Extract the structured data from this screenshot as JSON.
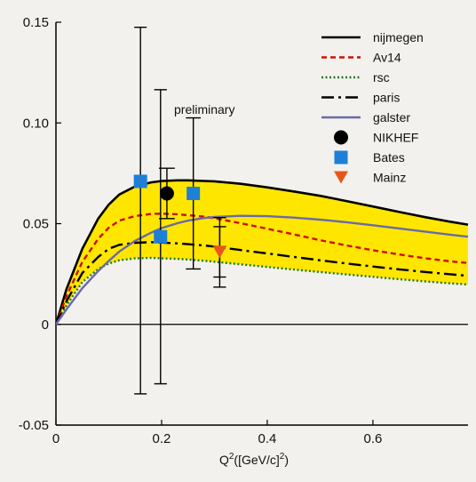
{
  "chart_data": {
    "type": "line",
    "xlabel_base": "Q",
    "xlabel_sup1": "2",
    "xlabel_mid": "([GeV/c]",
    "xlabel_sup2": "2",
    "xlabel_end": ")",
    "ylabel": "",
    "xlim": [
      0,
      0.78
    ],
    "ylim": [
      -0.05,
      0.15
    ],
    "x_ticks": [
      0,
      0.2,
      0.4,
      0.6
    ],
    "x_tick_labels": [
      "0",
      "0.2",
      "0.4",
      "0.6"
    ],
    "y_ticks": [
      -0.05,
      0,
      0.05,
      0.1,
      0.15
    ],
    "y_tick_labels": [
      "-0.05",
      "0",
      "0.05",
      "0.10",
      "0.15"
    ],
    "annotation": "preliminary",
    "band": {
      "color": "#ffe600",
      "upper": "nijmegen",
      "lower": "rsc"
    },
    "curves": [
      {
        "name": "nijmegen",
        "color": "#000000",
        "style": "solid",
        "x": [
          0,
          0.02,
          0.05,
          0.08,
          0.1,
          0.12,
          0.15,
          0.18,
          0.2,
          0.23,
          0.25,
          0.28,
          0.3,
          0.35,
          0.4,
          0.45,
          0.5,
          0.55,
          0.6,
          0.65,
          0.7,
          0.75,
          0.78
        ],
        "y": [
          0,
          0.0175,
          0.0375,
          0.0525,
          0.0595,
          0.0645,
          0.0685,
          0.0705,
          0.0712,
          0.0715,
          0.0715,
          0.0712,
          0.071,
          0.0698,
          0.068,
          0.066,
          0.0638,
          0.0612,
          0.0585,
          0.0558,
          0.0532,
          0.0508,
          0.0495
        ]
      },
      {
        "name": "Av14",
        "color": "#cc1100",
        "style": "dashed",
        "x": [
          0,
          0.02,
          0.05,
          0.08,
          0.1,
          0.12,
          0.15,
          0.18,
          0.2,
          0.23,
          0.25,
          0.28,
          0.3,
          0.35,
          0.4,
          0.45,
          0.5,
          0.55,
          0.6,
          0.65,
          0.7,
          0.75,
          0.78
        ],
        "y": [
          0,
          0.014,
          0.031,
          0.0425,
          0.048,
          0.0515,
          0.0538,
          0.0548,
          0.055,
          0.0547,
          0.0542,
          0.0535,
          0.0527,
          0.0502,
          0.0475,
          0.0447,
          0.0418,
          0.0392,
          0.0368,
          0.0347,
          0.0328,
          0.0312,
          0.0305
        ]
      },
      {
        "name": "rsc",
        "color": "#1f7a1f",
        "style": "dotted",
        "x": [
          0,
          0.02,
          0.05,
          0.08,
          0.1,
          0.12,
          0.15,
          0.18,
          0.2,
          0.23,
          0.25,
          0.28,
          0.3,
          0.35,
          0.4,
          0.45,
          0.5,
          0.55,
          0.6,
          0.65,
          0.7,
          0.75,
          0.78
        ],
        "y": [
          0,
          0.0095,
          0.021,
          0.0275,
          0.0302,
          0.0318,
          0.0328,
          0.033,
          0.0328,
          0.0325,
          0.0322,
          0.0316,
          0.0311,
          0.0298,
          0.0285,
          0.0272,
          0.026,
          0.0248,
          0.0236,
          0.0224,
          0.0213,
          0.0203,
          0.0198
        ]
      },
      {
        "name": "paris",
        "color": "#000000",
        "style": "dashdot",
        "x": [
          0,
          0.02,
          0.05,
          0.08,
          0.1,
          0.12,
          0.15,
          0.18,
          0.2,
          0.23,
          0.25,
          0.28,
          0.3,
          0.35,
          0.4,
          0.45,
          0.5,
          0.55,
          0.6,
          0.65,
          0.7,
          0.75,
          0.78
        ],
        "y": [
          0,
          0.0115,
          0.0255,
          0.0335,
          0.0375,
          0.0395,
          0.0405,
          0.0408,
          0.0406,
          0.0402,
          0.0398,
          0.0392,
          0.0386,
          0.0369,
          0.0352,
          0.0335,
          0.0318,
          0.0302,
          0.0287,
          0.0273,
          0.026,
          0.0248,
          0.0241
        ]
      },
      {
        "name": "galster",
        "color": "#6a6aa8",
        "style": "solid",
        "x": [
          0,
          0.02,
          0.05,
          0.08,
          0.1,
          0.12,
          0.15,
          0.18,
          0.2,
          0.23,
          0.25,
          0.28,
          0.3,
          0.35,
          0.4,
          0.45,
          0.5,
          0.55,
          0.6,
          0.65,
          0.7,
          0.75,
          0.78
        ],
        "y": [
          0,
          0.0075,
          0.018,
          0.0265,
          0.0315,
          0.0362,
          0.0415,
          0.0455,
          0.0478,
          0.0502,
          0.0515,
          0.0528,
          0.0533,
          0.0539,
          0.0537,
          0.053,
          0.052,
          0.0507,
          0.0492,
          0.0476,
          0.046,
          0.0444,
          0.0435
        ]
      }
    ],
    "points": [
      {
        "series": "NIKHEF",
        "x": 0.21,
        "y": 0.065,
        "ylo": 0.0525,
        "yhi": 0.0775,
        "xerr": 0.015
      },
      {
        "series": "Bates",
        "x": 0.16,
        "y": 0.071,
        "ylo": -0.0345,
        "yhi": 0.1475,
        "xerr": 0
      },
      {
        "series": "Bates",
        "x": 0.198,
        "y": 0.0435,
        "ylo": -0.0295,
        "yhi": 0.1165,
        "xerr": 0.012
      },
      {
        "series": "Bates",
        "x": 0.26,
        "y": 0.065,
        "ylo": 0.0275,
        "yhi": 0.1025,
        "xerr": 0.014
      },
      {
        "series": "Mainz",
        "x": 0.31,
        "y": 0.036,
        "ylo": 0.0235,
        "yhi": 0.0485,
        "xerr": 0.012
      }
    ],
    "extra_errorbars": [
      {
        "x": 0.31,
        "ylo": 0.0185,
        "yhi": 0.053,
        "xerr": 0.012
      }
    ],
    "legend": {
      "placement": "top-right",
      "entries": [
        {
          "label": "nijmegen",
          "kind": "line",
          "color": "#000000",
          "style": "solid"
        },
        {
          "label": "Av14",
          "kind": "line",
          "color": "#cc1100",
          "style": "dashed"
        },
        {
          "label": "rsc",
          "kind": "line",
          "color": "#1f7a1f",
          "style": "dotted"
        },
        {
          "label": "paris",
          "kind": "line",
          "color": "#000000",
          "style": "dashdot"
        },
        {
          "label": "galster",
          "kind": "line",
          "color": "#6a6aa8",
          "style": "solid"
        },
        {
          "label": "NIKHEF",
          "kind": "marker",
          "marker": "circle",
          "color": "#000000"
        },
        {
          "label": "Bates",
          "kind": "marker",
          "marker": "square",
          "color": "#1e7fd6"
        },
        {
          "label": "Mainz",
          "kind": "marker",
          "marker": "triangle-down",
          "color": "#e8561a"
        }
      ]
    },
    "grid": false
  }
}
